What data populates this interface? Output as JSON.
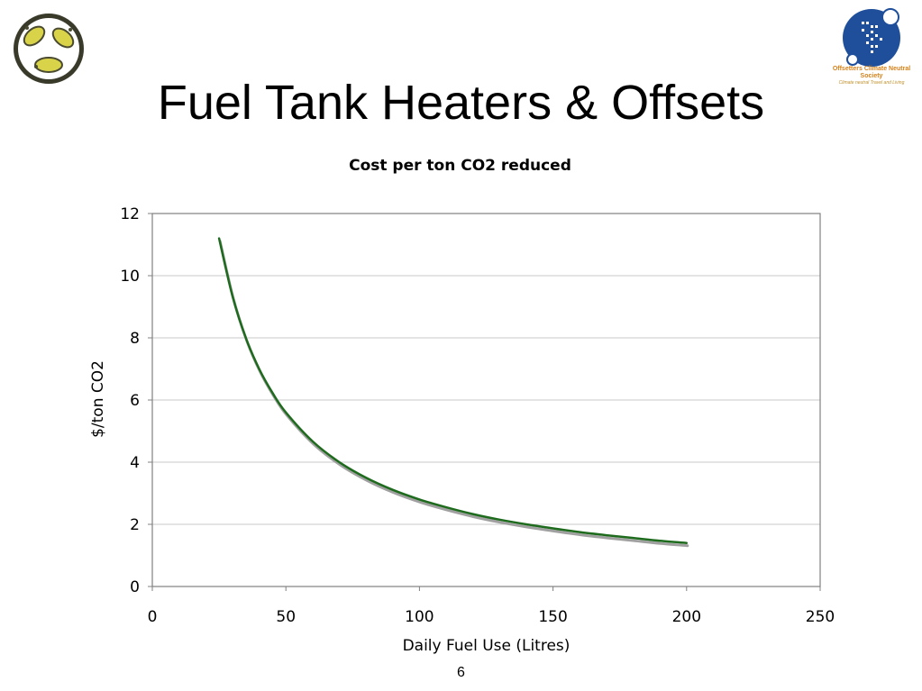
{
  "slide": {
    "title": "Fuel Tank Heaters & Offsets",
    "page_number": "6",
    "left_logo_icon": "recycle-footprints-icon",
    "right_logo_icon": "offsetters-emblem-icon",
    "org_name": "Offsetters Climate Neutral Society",
    "org_tagline": "Climate neutral Travel and Living"
  },
  "colors": {
    "series_line": "#1e6b1e",
    "series_shadow": "#a0a0a0",
    "grid": "#c8c8c8",
    "axis": "#808080",
    "org_name": "#d4821a",
    "logo_blue": "#1f4f9a"
  },
  "chart_data": {
    "type": "line",
    "title": "Cost per ton CO2 reduced",
    "xlabel": "Daily Fuel Use (Litres)",
    "ylabel": "$/ton CO2",
    "xlim": [
      0,
      250
    ],
    "ylim": [
      0,
      12
    ],
    "xticks": [
      0,
      50,
      100,
      150,
      200,
      250
    ],
    "yticks": [
      0,
      2,
      4,
      6,
      8,
      10,
      12
    ],
    "grid": "horizontal",
    "legend": "none",
    "series": [
      {
        "x": [
          25,
          30,
          35,
          40,
          45,
          50,
          60,
          70,
          80,
          90,
          100,
          110,
          120,
          130,
          140,
          150,
          160,
          170,
          180,
          190,
          200
        ],
        "values": [
          11.2,
          9.35,
          8.0,
          7.0,
          6.23,
          5.6,
          4.67,
          4.0,
          3.5,
          3.11,
          2.8,
          2.55,
          2.33,
          2.15,
          2.0,
          1.87,
          1.75,
          1.65,
          1.56,
          1.47,
          1.4
        ]
      }
    ]
  }
}
